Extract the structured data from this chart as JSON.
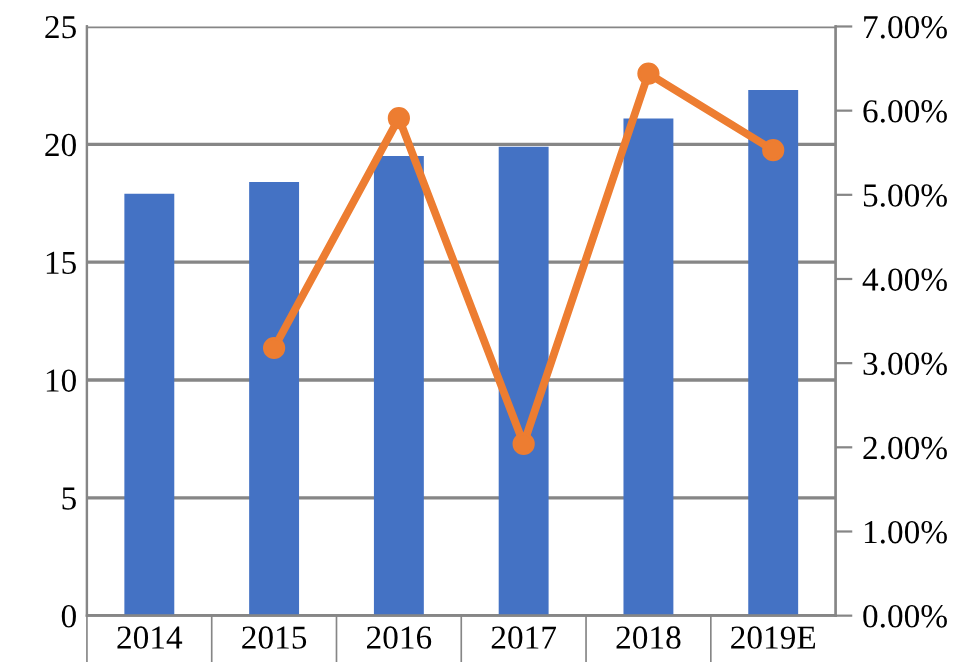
{
  "chart_data": {
    "type": "bar",
    "categories": [
      "2014",
      "2015",
      "2016",
      "2017",
      "2018",
      "2019E"
    ],
    "series": [
      {
        "color": "#4472c4",
        "values": [
          17.9,
          18.4,
          19.5,
          19.9,
          21.1,
          22.3
        ]
      },
      {
        "type": "line",
        "axis": "y2",
        "color": "#ed7d31",
        "marker": "circle",
        "line_style": "solid",
        "values": [
          null,
          3.18,
          5.91,
          2.04,
          6.44,
          5.53
        ]
      }
    ],
    "ylim": [
      0,
      25
    ],
    "yticks": [
      0,
      5,
      10,
      15,
      20,
      25
    ],
    "y2lim": [
      0,
      7
    ],
    "y2ticks": [
      {
        "value": 0,
        "label": "0.00%"
      },
      {
        "value": 1,
        "label": "1.00%"
      },
      {
        "value": 2,
        "label": "2.00%"
      },
      {
        "value": 3,
        "label": "3.00%"
      },
      {
        "value": 4,
        "label": "4.00%"
      },
      {
        "value": 5,
        "label": "5.00%"
      },
      {
        "value": 6,
        "label": "6.00%"
      },
      {
        "value": 7,
        "label": "7.00%"
      }
    ],
    "grid": "y"
  }
}
